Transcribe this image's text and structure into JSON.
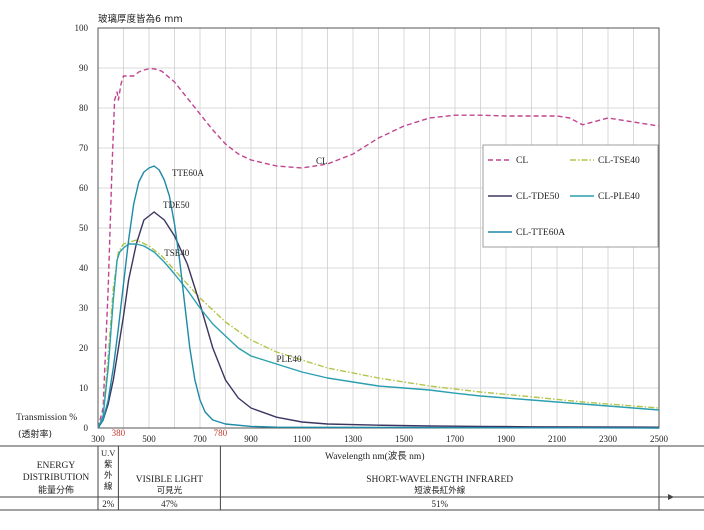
{
  "chart_data": {
    "type": "line",
    "subtitle": "玻璃厚度皆為6 mm",
    "xlabel": "Wavelength nm(波長 nm)",
    "ylabel": "Transmission %",
    "ylabel_cn": "(透射率)",
    "xlim": [
      300,
      2500
    ],
    "ylim": [
      0,
      100
    ],
    "grid": true,
    "x_ticks": [
      300,
      500,
      700,
      900,
      1100,
      1300,
      1500,
      1700,
      1900,
      2100,
      2300,
      2500
    ],
    "y_ticks": [
      0,
      10,
      20,
      30,
      40,
      50,
      60,
      70,
      80,
      90,
      100
    ],
    "x_marker_labels": [
      {
        "value": 380,
        "text": "380",
        "color": "#c0392b"
      },
      {
        "value": 780,
        "text": "780",
        "color": "#c0392b"
      }
    ],
    "legend_position": "right",
    "series": [
      {
        "name": "CL",
        "color": "#c0448f",
        "dash": "5,3",
        "points": [
          [
            300,
            0
          ],
          [
            320,
            5
          ],
          [
            340,
            35
          ],
          [
            355,
            65
          ],
          [
            365,
            82
          ],
          [
            375,
            84
          ],
          [
            380,
            82
          ],
          [
            390,
            86
          ],
          [
            400,
            88
          ],
          [
            420,
            88
          ],
          [
            440,
            88
          ],
          [
            460,
            89
          ],
          [
            480,
            89.5
          ],
          [
            500,
            89.8
          ],
          [
            520,
            89.8
          ],
          [
            550,
            89.2
          ],
          [
            600,
            86.5
          ],
          [
            650,
            82.5
          ],
          [
            700,
            78.5
          ],
          [
            750,
            74.5
          ],
          [
            800,
            71
          ],
          [
            850,
            68.5
          ],
          [
            900,
            67
          ],
          [
            1000,
            65.5
          ],
          [
            1100,
            65
          ],
          [
            1200,
            66
          ],
          [
            1300,
            68.5
          ],
          [
            1400,
            72.5
          ],
          [
            1500,
            75.5
          ],
          [
            1600,
            77.5
          ],
          [
            1700,
            78.2
          ],
          [
            1800,
            78.2
          ],
          [
            1900,
            78
          ],
          [
            2000,
            78
          ],
          [
            2100,
            78
          ],
          [
            2150,
            77.5
          ],
          [
            2200,
            75.8
          ],
          [
            2300,
            77.5
          ],
          [
            2400,
            76.5
          ],
          [
            2500,
            75.5
          ]
        ]
      },
      {
        "name": "CL-TSE40",
        "color": "#b5c44a",
        "dash": "6,2,1.5,2",
        "points": [
          [
            300,
            0
          ],
          [
            320,
            3
          ],
          [
            340,
            18
          ],
          [
            360,
            35
          ],
          [
            380,
            44
          ],
          [
            400,
            46
          ],
          [
            450,
            47
          ],
          [
            500,
            45.5
          ],
          [
            550,
            43
          ],
          [
            600,
            39.5
          ],
          [
            650,
            36
          ],
          [
            700,
            32.5
          ],
          [
            800,
            26.5
          ],
          [
            900,
            22
          ],
          [
            1000,
            19
          ],
          [
            1200,
            15
          ],
          [
            1400,
            12.5
          ],
          [
            1600,
            10.5
          ],
          [
            1800,
            9
          ],
          [
            2000,
            7.8
          ],
          [
            2200,
            6.5
          ],
          [
            2400,
            5.5
          ],
          [
            2500,
            5
          ]
        ]
      },
      {
        "name": "CL-TDE50",
        "color": "#3d3560",
        "dash": "",
        "points": [
          [
            300,
            0
          ],
          [
            320,
            2
          ],
          [
            340,
            6
          ],
          [
            360,
            12
          ],
          [
            380,
            20
          ],
          [
            400,
            28
          ],
          [
            420,
            37
          ],
          [
            450,
            46
          ],
          [
            480,
            52
          ],
          [
            520,
            54
          ],
          [
            560,
            52
          ],
          [
            600,
            48
          ],
          [
            650,
            41
          ],
          [
            700,
            31
          ],
          [
            750,
            20
          ],
          [
            800,
            12
          ],
          [
            850,
            7.5
          ],
          [
            900,
            5
          ],
          [
            1000,
            2.7
          ],
          [
            1100,
            1.5
          ],
          [
            1200,
            1
          ],
          [
            1400,
            0.7
          ],
          [
            1600,
            0.5
          ],
          [
            1800,
            0.4
          ],
          [
            2000,
            0.3
          ],
          [
            2500,
            0.2
          ]
        ]
      },
      {
        "name": "CL-PLE40",
        "color": "#2a9fb0",
        "dash": "",
        "points": [
          [
            300,
            0
          ],
          [
            320,
            3
          ],
          [
            340,
            15
          ],
          [
            360,
            32
          ],
          [
            375,
            42
          ],
          [
            385,
            44
          ],
          [
            400,
            45
          ],
          [
            420,
            46
          ],
          [
            450,
            46
          ],
          [
            480,
            45.5
          ],
          [
            520,
            44
          ],
          [
            560,
            41.5
          ],
          [
            600,
            38.5
          ],
          [
            650,
            34.5
          ],
          [
            700,
            30
          ],
          [
            750,
            26
          ],
          [
            800,
            23
          ],
          [
            850,
            20
          ],
          [
            900,
            18
          ],
          [
            1000,
            16
          ],
          [
            1100,
            14
          ],
          [
            1200,
            12.5
          ],
          [
            1300,
            11.5
          ],
          [
            1400,
            10.5
          ],
          [
            1500,
            10
          ],
          [
            1600,
            9.5
          ],
          [
            1700,
            8.7
          ],
          [
            1800,
            8
          ],
          [
            1900,
            7.5
          ],
          [
            2000,
            7
          ],
          [
            2100,
            6.5
          ],
          [
            2200,
            6
          ],
          [
            2300,
            5.5
          ],
          [
            2400,
            5
          ],
          [
            2500,
            4.5
          ]
        ]
      },
      {
        "name": "CL-TTE60A",
        "color": "#1e8aa8",
        "dash": "",
        "points": [
          [
            300,
            0
          ],
          [
            320,
            2
          ],
          [
            340,
            7
          ],
          [
            360,
            15
          ],
          [
            380,
            25
          ],
          [
            400,
            36
          ],
          [
            420,
            47
          ],
          [
            440,
            56
          ],
          [
            460,
            61.5
          ],
          [
            480,
            64
          ],
          [
            500,
            65
          ],
          [
            520,
            65.5
          ],
          [
            540,
            64.5
          ],
          [
            560,
            62
          ],
          [
            580,
            58
          ],
          [
            600,
            51
          ],
          [
            620,
            42
          ],
          [
            640,
            31
          ],
          [
            660,
            20
          ],
          [
            680,
            12
          ],
          [
            700,
            7
          ],
          [
            720,
            4
          ],
          [
            750,
            2
          ],
          [
            800,
            1
          ],
          [
            900,
            0.4
          ],
          [
            1000,
            0.2
          ],
          [
            2500,
            0
          ]
        ]
      }
    ],
    "curve_labels": [
      {
        "text": "CL",
        "x": 1155,
        "y": 66
      },
      {
        "text": "TTE60A",
        "x": 590,
        "y": 63
      },
      {
        "text": "TDE50",
        "x": 555,
        "y": 55
      },
      {
        "text": "TSE40",
        "x": 560,
        "y": 43
      },
      {
        "text": "PLE40",
        "x": 1000,
        "y": 16.5
      }
    ],
    "energy_distribution": {
      "title_lines": [
        "ENERGY",
        "DISTRIBUTION",
        "能量分佈"
      ],
      "bands": [
        {
          "label_lines": [
            "U.V",
            "紫",
            "外",
            "線"
          ],
          "percent": "2%",
          "from": 300,
          "to": 380
        },
        {
          "label_lines": [
            "VISIBLE LIGHT",
            "可見光"
          ],
          "percent": "47%",
          "from": 380,
          "to": 780
        },
        {
          "label_lines": [
            "SHORT-WAVELENGTH INFRARED",
            "短波長紅外線"
          ],
          "percent": "51%",
          "from": 780,
          "to": 2500
        }
      ]
    }
  }
}
